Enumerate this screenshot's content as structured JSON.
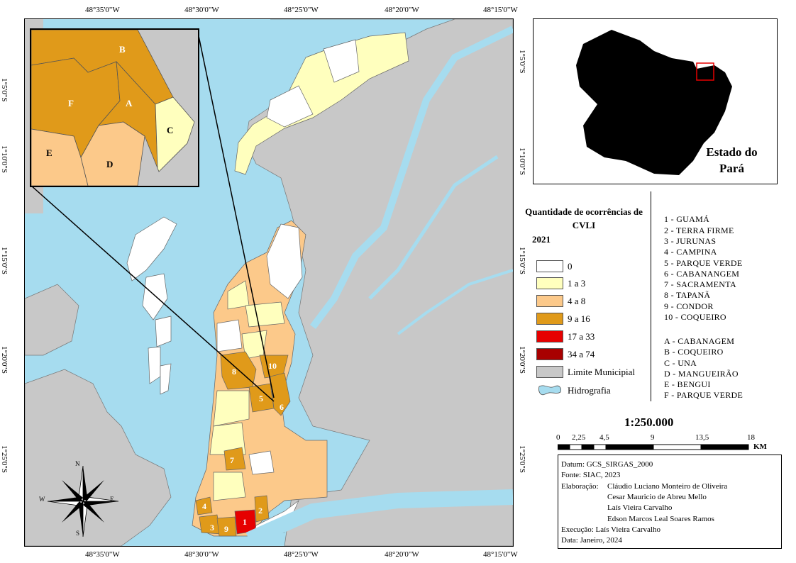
{
  "coords": {
    "top": [
      "48°35'0\"W",
      "48°30'0\"W",
      "48°25'0\"W",
      "48°20'0\"W",
      "48°15'0\"W"
    ],
    "bottom": [
      "48°35'0\"W",
      "48°30'0\"W",
      "48°25'0\"W",
      "48°20'0\"W",
      "48°15'0\"W"
    ],
    "left": [
      "1°5'0\"S",
      "1°10'0\"S",
      "1°15'0\"S",
      "1°20'0\"S",
      "1°25'0\"S"
    ],
    "right": [
      "1°5'0\"S",
      "1°10'0\"S",
      "1°15'0\"S",
      "1°20'0\"S",
      "1°25'0\"S"
    ]
  },
  "colors": {
    "water": "#a6dcef",
    "land": "#c8c8c8",
    "c0": "#ffffff",
    "c1": "#ffffbe",
    "c2": "#fcc98a",
    "c3": "#e09a1a",
    "c4": "#e60000",
    "c5": "#a80000"
  },
  "inset_labels": [
    "A",
    "B",
    "C",
    "D",
    "E",
    "F"
  ],
  "map_numbers": [
    "1",
    "2",
    "3",
    "4",
    "5",
    "6",
    "7",
    "8",
    "9",
    "10"
  ],
  "state_map": {
    "label": "Estado do Pará"
  },
  "legend": {
    "title": "Quantidade de ocorrências de CVLI",
    "year": "2021",
    "items": [
      {
        "label": "0",
        "color": "#ffffff"
      },
      {
        "label": "1 a 3",
        "color": "#ffffbe"
      },
      {
        "label": "4 a 8",
        "color": "#fcc98a"
      },
      {
        "label": "9 a 16",
        "color": "#e09a1a"
      },
      {
        "label": "17 a 33",
        "color": "#e60000"
      },
      {
        "label": "34 a 74",
        "color": "#a80000"
      },
      {
        "label": "Limite Municipial",
        "color": "#c8c8c8"
      },
      {
        "label": "Hidrografia",
        "color": "#a6dcef"
      }
    ]
  },
  "neighborhoods": [
    "1 - GUAMÁ",
    "2 - TERRA FIRME",
    "3 - JURUNAS",
    "4 - CAMPINA",
    "5 - PARQUE VERDE",
    "6 - CABANANGEM",
    "7 - SACRAMENTA",
    "8 - TAPANÃ",
    "9 - CONDOR",
    "10 - COQUEIRO"
  ],
  "inset_neighborhoods": [
    "A - CABANAGEM",
    "B - COQUEIRO",
    "C - UNA",
    "D - MANGUEIRÃO",
    "E - BENGUI",
    "F - PARQUE VERDE"
  ],
  "scale": {
    "ratio": "1:250.000",
    "ticks": [
      "0",
      "2,25",
      "4,5",
      "9",
      "13,5",
      "18"
    ],
    "unit": "KM"
  },
  "north_arrow": {
    "n": "N",
    "s": "S",
    "e": "E",
    "w": "W"
  },
  "meta": {
    "datum": "Datum: GCS_SIRGAS_2000",
    "fonte": "Fonte: SIAC, 2023",
    "elab_label": "Elaboração:",
    "authors": [
      "Cláudio Luciano Monteiro de Oliveira",
      "Cesar Mauricio de Abreu Mello",
      "Laís Vieira Carvalho",
      "Edson Marcos Leal Soares Ramos"
    ],
    "execucao": "Execução: Laís Vieira Carvalho",
    "data": "Data: Janeiro, 2024"
  }
}
